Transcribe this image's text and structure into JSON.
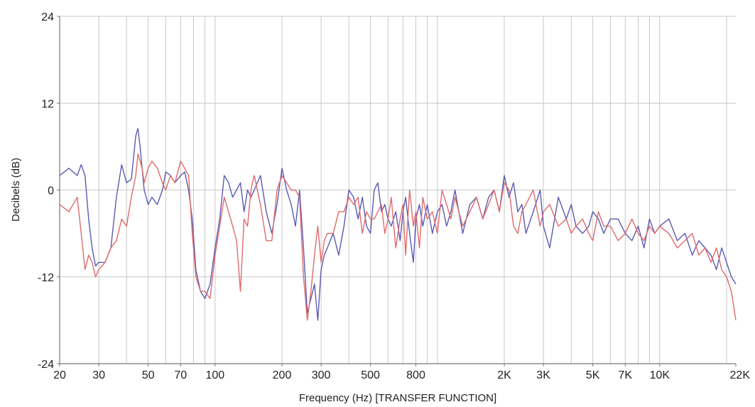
{
  "chart_data": {
    "type": "line",
    "title": "",
    "xlabel": "Frequency (Hz) [TRANSFER FUNCTION]",
    "ylabel": "Decibels (dB)",
    "x_scale": "log",
    "xlim": [
      20,
      22000
    ],
    "ylim": [
      -24,
      24
    ],
    "grid": true,
    "legend": "none",
    "x_ticks": [
      {
        "value": 20,
        "label": "20"
      },
      {
        "value": 30,
        "label": "30"
      },
      {
        "value": 50,
        "label": "50"
      },
      {
        "value": 70,
        "label": "70"
      },
      {
        "value": 100,
        "label": "100"
      },
      {
        "value": 200,
        "label": "200"
      },
      {
        "value": 300,
        "label": "300"
      },
      {
        "value": 500,
        "label": "500"
      },
      {
        "value": 800,
        "label": "800"
      },
      {
        "value": 2000,
        "label": "2K"
      },
      {
        "value": 3000,
        "label": "3K"
      },
      {
        "value": 5000,
        "label": "5K"
      },
      {
        "value": 7000,
        "label": "7K"
      },
      {
        "value": 10000,
        "label": "10K"
      },
      {
        "value": 22000,
        "label": "22K"
      }
    ],
    "x_gridlines": [
      20,
      30,
      40,
      50,
      60,
      70,
      80,
      90,
      100,
      200,
      300,
      400,
      500,
      600,
      700,
      800,
      900,
      1000,
      2000,
      3000,
      4000,
      5000,
      6000,
      7000,
      8000,
      9000,
      10000,
      20000
    ],
    "y_ticks": [
      {
        "value": 24,
        "label": "24"
      },
      {
        "value": 12,
        "label": "12"
      },
      {
        "value": 0,
        "label": "0"
      },
      {
        "value": -12,
        "label": "-12"
      },
      {
        "value": -24,
        "label": "-24"
      }
    ],
    "colors": {
      "blue": "#5a5ab4",
      "red": "#e06a6a",
      "grid": "#c8c8c8",
      "axis": "#777777"
    },
    "series": [
      {
        "color": "#5a5ab4",
        "x": [
          20,
          22,
          24,
          25,
          26,
          27,
          28,
          29,
          30,
          32,
          34,
          36,
          38,
          40,
          42,
          44,
          45,
          46,
          47,
          48,
          50,
          52,
          55,
          58,
          60,
          63,
          66,
          70,
          73,
          76,
          79,
          82,
          86,
          90,
          95,
          100,
          105,
          110,
          115,
          120,
          125,
          130,
          135,
          140,
          145,
          150,
          160,
          170,
          180,
          190,
          200,
          210,
          220,
          230,
          240,
          250,
          260,
          270,
          280,
          290,
          300,
          310,
          320,
          340,
          360,
          380,
          400,
          420,
          440,
          460,
          480,
          500,
          520,
          540,
          560,
          580,
          600,
          620,
          650,
          680,
          700,
          720,
          750,
          780,
          800,
          830,
          860,
          900,
          950,
          1000,
          1050,
          1100,
          1150,
          1200,
          1300,
          1400,
          1500,
          1600,
          1700,
          1800,
          1900,
          2000,
          2100,
          2200,
          2300,
          2400,
          2500,
          2700,
          2900,
          3000,
          3200,
          3500,
          3800,
          4000,
          4200,
          4500,
          4800,
          5000,
          5300,
          5600,
          6000,
          6500,
          7000,
          7500,
          8000,
          8500,
          9000,
          9500,
          10000,
          11000,
          12000,
          13000,
          14000,
          15000,
          16000,
          17000,
          18000,
          19000,
          20000,
          21000,
          22000
        ],
        "y": [
          2,
          3,
          2,
          3.5,
          2,
          -4,
          -8,
          -10.5,
          -10,
          -10,
          -8,
          -1,
          3.5,
          1,
          1.5,
          7.5,
          8.5,
          6,
          3,
          0,
          -2,
          -1,
          -2,
          0,
          2.5,
          2,
          1,
          2,
          2.5,
          0,
          -4,
          -11,
          -14,
          -15,
          -13,
          -8,
          -4,
          2,
          1,
          -1,
          0,
          1,
          -3,
          0,
          -1,
          0,
          2,
          -3,
          -6,
          -2,
          3,
          0,
          -2,
          -5,
          0,
          -8,
          -17,
          -15,
          -13,
          -18,
          -11,
          -9,
          -8,
          -6,
          -9,
          -5,
          0,
          -1,
          -4,
          -1,
          -5,
          -6,
          0,
          1,
          -3,
          -2,
          -4,
          -5,
          -3,
          -7,
          -3,
          -1,
          -6,
          -10,
          -4,
          -2,
          -5,
          -2,
          -6,
          -3,
          -2,
          -5,
          -3,
          0,
          -6,
          -2,
          -1,
          -4,
          -1,
          0,
          -3,
          2,
          -1,
          1,
          -3,
          -2,
          -6,
          -3,
          0,
          -5,
          -8,
          -1,
          -4,
          -2,
          -5,
          -6,
          -5,
          -3,
          -4,
          -6,
          -4,
          -4,
          -6,
          -7,
          -5,
          -8,
          -4,
          -6,
          -5,
          -4,
          -7,
          -6,
          -9,
          -7,
          -8,
          -9,
          -11,
          -8,
          -10,
          -12,
          -13
        ]
      },
      {
        "color": "#e06a6a",
        "x": [
          20,
          22,
          24,
          25,
          26,
          27,
          28,
          29,
          30,
          32,
          34,
          36,
          38,
          40,
          42,
          44,
          45,
          46,
          47,
          48,
          50,
          52,
          55,
          58,
          60,
          63,
          66,
          70,
          73,
          76,
          79,
          82,
          86,
          90,
          95,
          100,
          105,
          110,
          115,
          120,
          125,
          130,
          135,
          140,
          145,
          150,
          160,
          170,
          180,
          190,
          200,
          210,
          220,
          230,
          240,
          250,
          260,
          270,
          280,
          290,
          300,
          310,
          320,
          340,
          360,
          380,
          400,
          420,
          440,
          460,
          480,
          500,
          520,
          540,
          560,
          580,
          600,
          620,
          650,
          680,
          700,
          720,
          750,
          780,
          800,
          830,
          860,
          900,
          950,
          1000,
          1050,
          1100,
          1150,
          1200,
          1300,
          1400,
          1500,
          1600,
          1700,
          1800,
          1900,
          2000,
          2100,
          2200,
          2300,
          2400,
          2500,
          2700,
          2900,
          3000,
          3200,
          3500,
          3800,
          4000,
          4200,
          4500,
          4800,
          5000,
          5300,
          5600,
          6000,
          6500,
          7000,
          7500,
          8000,
          8500,
          9000,
          9500,
          10000,
          11000,
          12000,
          13000,
          14000,
          15000,
          16000,
          17000,
          18000,
          19000,
          20000,
          21000,
          22000
        ],
        "y": [
          -2,
          -3,
          -1,
          -6,
          -11,
          -9,
          -10,
          -12,
          -11,
          -10,
          -8,
          -7,
          -4,
          -5,
          -1,
          2,
          5,
          4,
          3,
          1,
          3,
          4,
          3,
          1,
          0,
          2,
          1,
          4,
          3,
          2,
          -6,
          -12,
          -14,
          -14,
          -15,
          -9,
          -5,
          -1,
          -3,
          -5,
          -7,
          -14,
          -4,
          -5,
          0,
          2,
          -2,
          -7,
          -7,
          0,
          2,
          1,
          0,
          0,
          -1,
          -12,
          -18,
          -14,
          -9,
          -5,
          -10,
          -7,
          -6,
          -6,
          -3,
          -3,
          -1,
          -2,
          -1,
          -6,
          -3,
          -4,
          -4,
          -3,
          -2,
          -6,
          -4,
          -1,
          -8,
          -4,
          -2,
          -9,
          0,
          -5,
          -3,
          -8,
          -1,
          -4,
          -3,
          -6,
          0,
          -2,
          -4,
          -1,
          -5,
          -3,
          -1,
          -4,
          -2,
          0,
          -3,
          1,
          0,
          -5,
          -6,
          -3,
          -2,
          0,
          -5,
          -3,
          -2,
          -5,
          -4,
          -6,
          -5,
          -4,
          -6,
          -7,
          -3,
          -5,
          -5,
          -7,
          -6,
          -4,
          -6,
          -7,
          -5,
          -6,
          -5,
          -6,
          -8,
          -7,
          -6,
          -9,
          -8,
          -10,
          -8,
          -11,
          -12,
          -14,
          -18
        ]
      }
    ]
  }
}
